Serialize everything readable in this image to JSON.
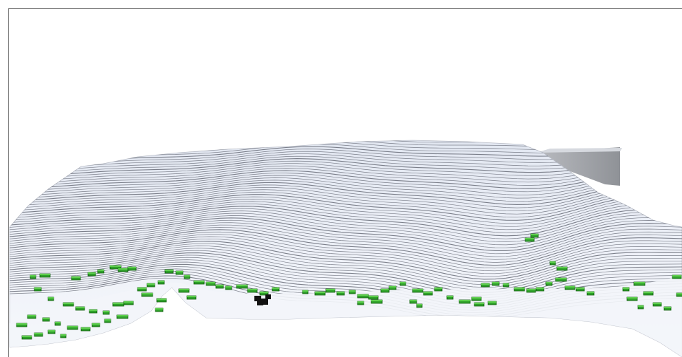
{
  "scene": {
    "subject": "terrain-model-with-buildings",
    "colors": {
      "background": "#ffffff",
      "terrain_top": "#eef1f7",
      "terrain_shadow": "#d9dde6",
      "contour_line": "#555a66",
      "side_wall_dark": "#9b9ea3",
      "side_wall_light": "#c6c8cc",
      "building_green": "#2fa12a",
      "building_dark_green": "#0e5c0c",
      "building_black": "#111111",
      "frame_border": "#7d7d7d"
    }
  }
}
